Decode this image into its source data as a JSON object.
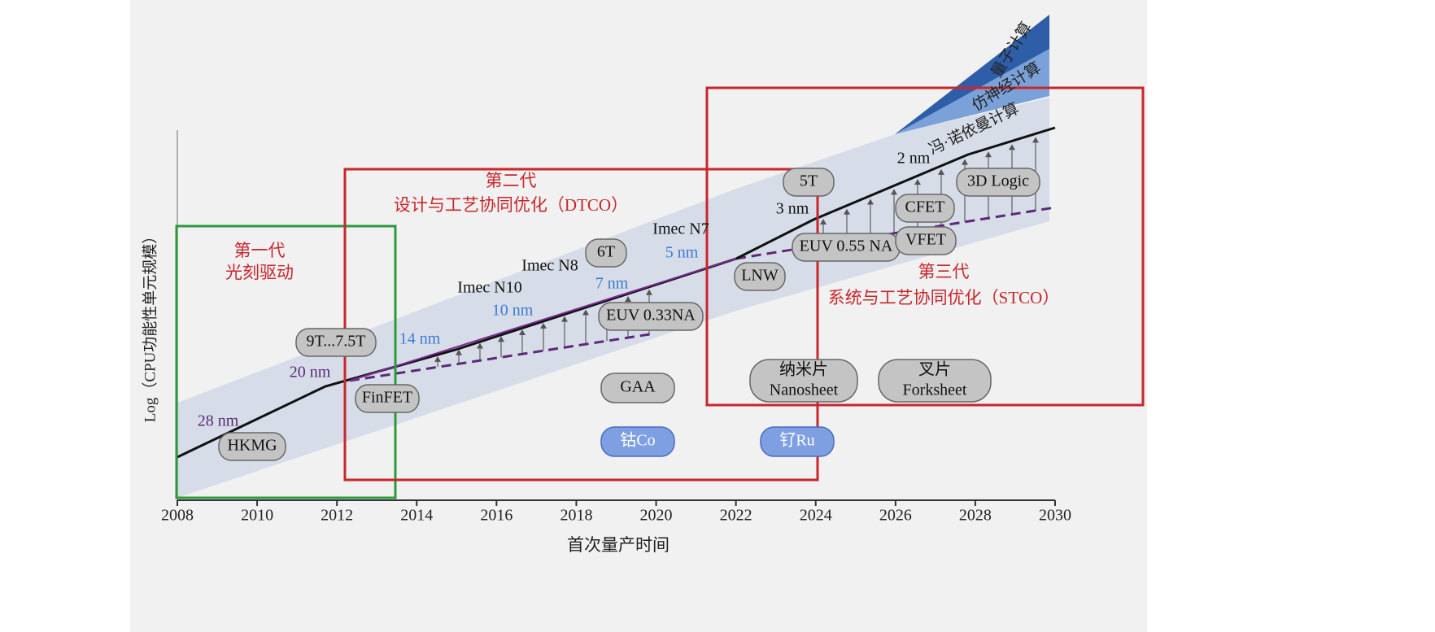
{
  "axis": {
    "xlabel": "首次量产时间",
    "ylabel": "Log（CPU功能性单元规模）",
    "xlim": [
      2008,
      2030
    ],
    "xticks": [
      2008,
      2010,
      2012,
      2014,
      2016,
      2018,
      2020,
      2022,
      2024,
      2026,
      2028,
      2030
    ]
  },
  "generations": [
    {
      "title": "第一代",
      "subtitle": "光刻驱动"
    },
    {
      "title": "第二代",
      "subtitle": "设计与工艺协同优化（DTCO）"
    },
    {
      "title": "第三代",
      "subtitle": "系统与工艺协同优化（STCO）"
    }
  ],
  "computing": [
    "量子计算",
    "仿神经计算",
    "冯·诺依曼计算"
  ],
  "nodes": [
    "28 nm",
    "20 nm",
    "14 nm",
    "10 nm",
    "7 nm",
    "5 nm",
    "3 nm",
    "2 nm"
  ],
  "imec": [
    "Imec N10",
    "Imec N8",
    "Imec N7"
  ],
  "technologies": [
    {
      "zh": "HKMG"
    },
    {
      "zh": "9T...7.5T"
    },
    {
      "zh": "FinFET"
    },
    {
      "zh": "6T"
    },
    {
      "zh": "EUV 0.33NA"
    },
    {
      "zh": "GAA"
    },
    {
      "zh": "钴Co"
    },
    {
      "zh": "LNW"
    },
    {
      "zh": "5T"
    },
    {
      "zh": "EUV 0.55 NA"
    },
    {
      "zh": "VFET"
    },
    {
      "zh": "CFET"
    },
    {
      "zh": "3D Logic"
    },
    {
      "zh": "纳米片",
      "en": "Nanosheet"
    },
    {
      "zh": "叉片",
      "en": "Forksheet"
    },
    {
      "zh": "钌Ru"
    }
  ]
}
